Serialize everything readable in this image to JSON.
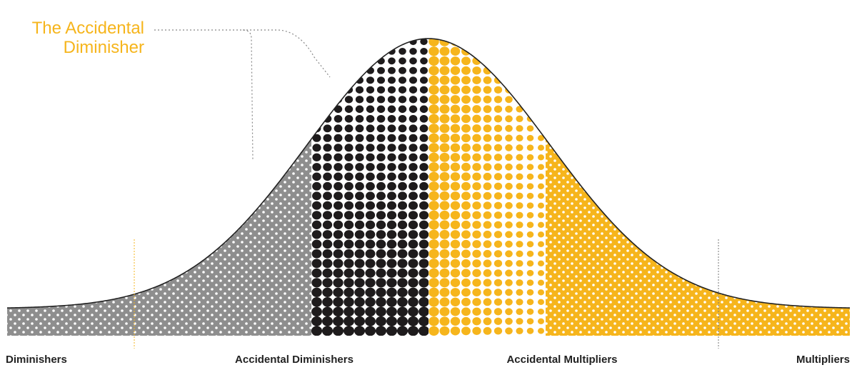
{
  "callout": {
    "line1": "The Accidental",
    "line2": "Diminisher"
  },
  "categories": [
    {
      "id": "diminishers",
      "label": "Diminishers",
      "color": "#8e8e8e"
    },
    {
      "id": "accidental-diminishers",
      "label": "Accidental Diminishers",
      "color": "#1e1b1c"
    },
    {
      "id": "accidental-multipliers",
      "label": "Accidental Multipliers",
      "color": "#f6b51c"
    },
    {
      "id": "multipliers",
      "label": "Multipliers",
      "color": "#f6b51c"
    }
  ],
  "colors": {
    "accent": "#f6b51c",
    "gray": "#8e8e8e",
    "dark": "#1e1b1c",
    "dots": "#ffffff",
    "curve": "#222222"
  }
}
